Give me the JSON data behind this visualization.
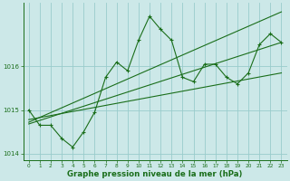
{
  "xlabel": "Graphe pression niveau de la mer (hPa)",
  "bg_color": "#cce8e8",
  "grid_color": "#99cccc",
  "line_color": "#1a6e1a",
  "ylim": [
    1013.85,
    1017.45
  ],
  "xlim": [
    -0.5,
    23.5
  ],
  "yticks": [
    1014,
    1015,
    1016
  ],
  "xticks": [
    0,
    1,
    2,
    3,
    4,
    5,
    6,
    7,
    8,
    9,
    10,
    11,
    12,
    13,
    14,
    15,
    16,
    17,
    18,
    19,
    20,
    21,
    22,
    23
  ],
  "series1_x": [
    0,
    1,
    2,
    3,
    4,
    5,
    6,
    7,
    8,
    9,
    10,
    11,
    12,
    13,
    14,
    15,
    16,
    17,
    18,
    19,
    20,
    21,
    22,
    23
  ],
  "series1_y": [
    1015.0,
    1014.65,
    1014.65,
    1014.35,
    1014.15,
    1014.5,
    1014.95,
    1015.75,
    1016.1,
    1015.9,
    1016.6,
    1017.15,
    1016.85,
    1016.6,
    1015.75,
    1015.65,
    1016.05,
    1016.05,
    1015.75,
    1015.6,
    1015.85,
    1016.5,
    1016.75,
    1016.55
  ],
  "trend1_x": [
    0,
    23
  ],
  "trend1_y": [
    1014.72,
    1017.25
  ],
  "trend2_x": [
    0,
    23
  ],
  "trend2_y": [
    1014.68,
    1016.55
  ],
  "trend3_x": [
    0,
    23
  ],
  "trend3_y": [
    1014.78,
    1015.85
  ]
}
